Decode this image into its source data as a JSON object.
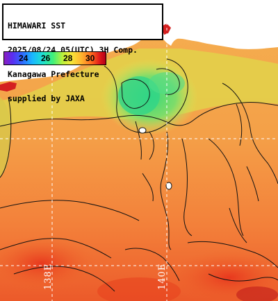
{
  "title_lines": [
    "HIMAWARI SST",
    "2025/08/24 05(UTC) 3H Comp.",
    "Kanagawa Prefecture",
    "supplied by JAXA"
  ],
  "colorbar": {
    "ticks": [
      "24",
      "26",
      "28",
      "30"
    ],
    "colors": {
      "cold": "#6a1fd0",
      "cool": "#19b8ff",
      "mid": "#3ff07a",
      "warm": "#f6e83a",
      "hot": "#ff6a1e",
      "hottest": "#b3001a"
    }
  },
  "longitudes": [
    "138E",
    "140E"
  ],
  "palette": {
    "land": "#ffffff",
    "sea_base": "#f4a048",
    "contour": "#111111",
    "graticule": "#ffffff"
  }
}
